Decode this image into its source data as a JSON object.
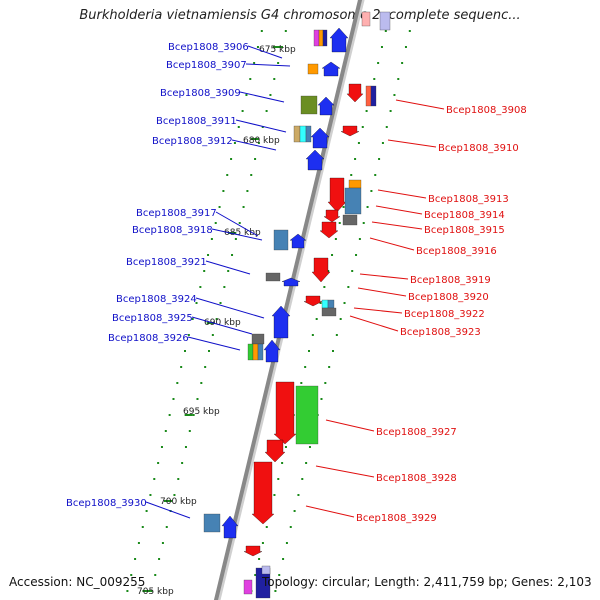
{
  "title": "Burkholderia vietnamiensis G4 chromosome 2, complete sequenc...",
  "footer": {
    "accession": "Accession: NC_009255",
    "topology": "Topology: circular; Length: 2,411,759 bp; Genes: 2,103"
  },
  "colors": {
    "left_label": "#1010c8",
    "right_label": "#e01010",
    "backbone": "#888888",
    "tick": "#1a8a1a"
  },
  "kbp_ticks": [
    "675 kbp",
    "680 kbp",
    "685 kbp",
    "690 kbp",
    "695 kbp",
    "700 kbp",
    "705 kbp"
  ],
  "left_labels": [
    "Bcep1808_3906",
    "Bcep1808_3907",
    "Bcep1808_3909",
    "Bcep1808_3911",
    "Bcep1808_3912",
    "Bcep1808_3917",
    "Bcep1808_3918",
    "Bcep1808_3921",
    "Bcep1808_3924",
    "Bcep1808_3925",
    "Bcep1808_3926",
    "Bcep1808_3930"
  ],
  "right_labels": [
    "Bcep1808_3908",
    "Bcep1808_3910",
    "Bcep1808_3913",
    "Bcep1808_3914",
    "Bcep1808_3915",
    "Bcep1808_3916",
    "Bcep1808_3919",
    "Bcep1808_3920",
    "Bcep1808_3922",
    "Bcep1808_3923",
    "Bcep1808_3927",
    "Bcep1808_3928",
    "Bcep1808_3929"
  ]
}
